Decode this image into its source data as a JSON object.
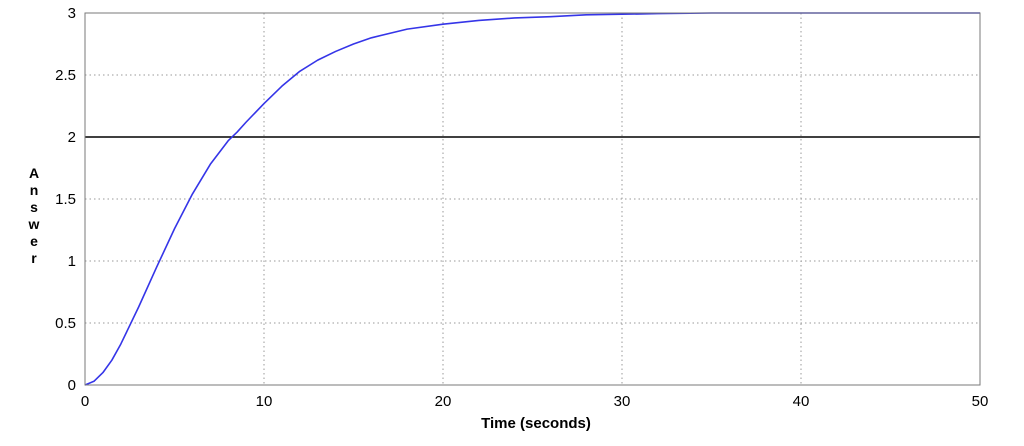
{
  "chart_data": {
    "type": "line",
    "title": "",
    "xlabel": "Time (seconds)",
    "ylabel": "Answer",
    "xlim": [
      0,
      50
    ],
    "ylim": [
      0,
      3
    ],
    "xticks": [
      "0",
      "10",
      "20",
      "30",
      "40",
      "50"
    ],
    "yticks": [
      "0",
      "0.5",
      "1",
      "1.5",
      "2",
      "2.5",
      "3"
    ],
    "grid": true,
    "colors": {
      "response": "#3535e8",
      "reference": "#000000",
      "grid": "#9a9a9a"
    },
    "series": [
      {
        "x": [
          0,
          0.5,
          1,
          1.5,
          2,
          3,
          4,
          5,
          6,
          7,
          8,
          8.5,
          9,
          10,
          11,
          12,
          13,
          14,
          15,
          16,
          18,
          20,
          22,
          24,
          26,
          28,
          30,
          32,
          35,
          38,
          40,
          45,
          50
        ],
        "y": [
          0,
          0.03,
          0.1,
          0.2,
          0.33,
          0.63,
          0.95,
          1.26,
          1.54,
          1.78,
          1.97,
          2.04,
          2.12,
          2.27,
          2.41,
          2.53,
          2.62,
          2.69,
          2.75,
          2.8,
          2.87,
          2.91,
          2.94,
          2.96,
          2.97,
          2.985,
          2.99,
          2.995,
          3,
          3,
          3,
          3,
          3
        ]
      },
      {
        "x": [
          0,
          50
        ],
        "y": [
          2,
          2
        ]
      }
    ]
  }
}
